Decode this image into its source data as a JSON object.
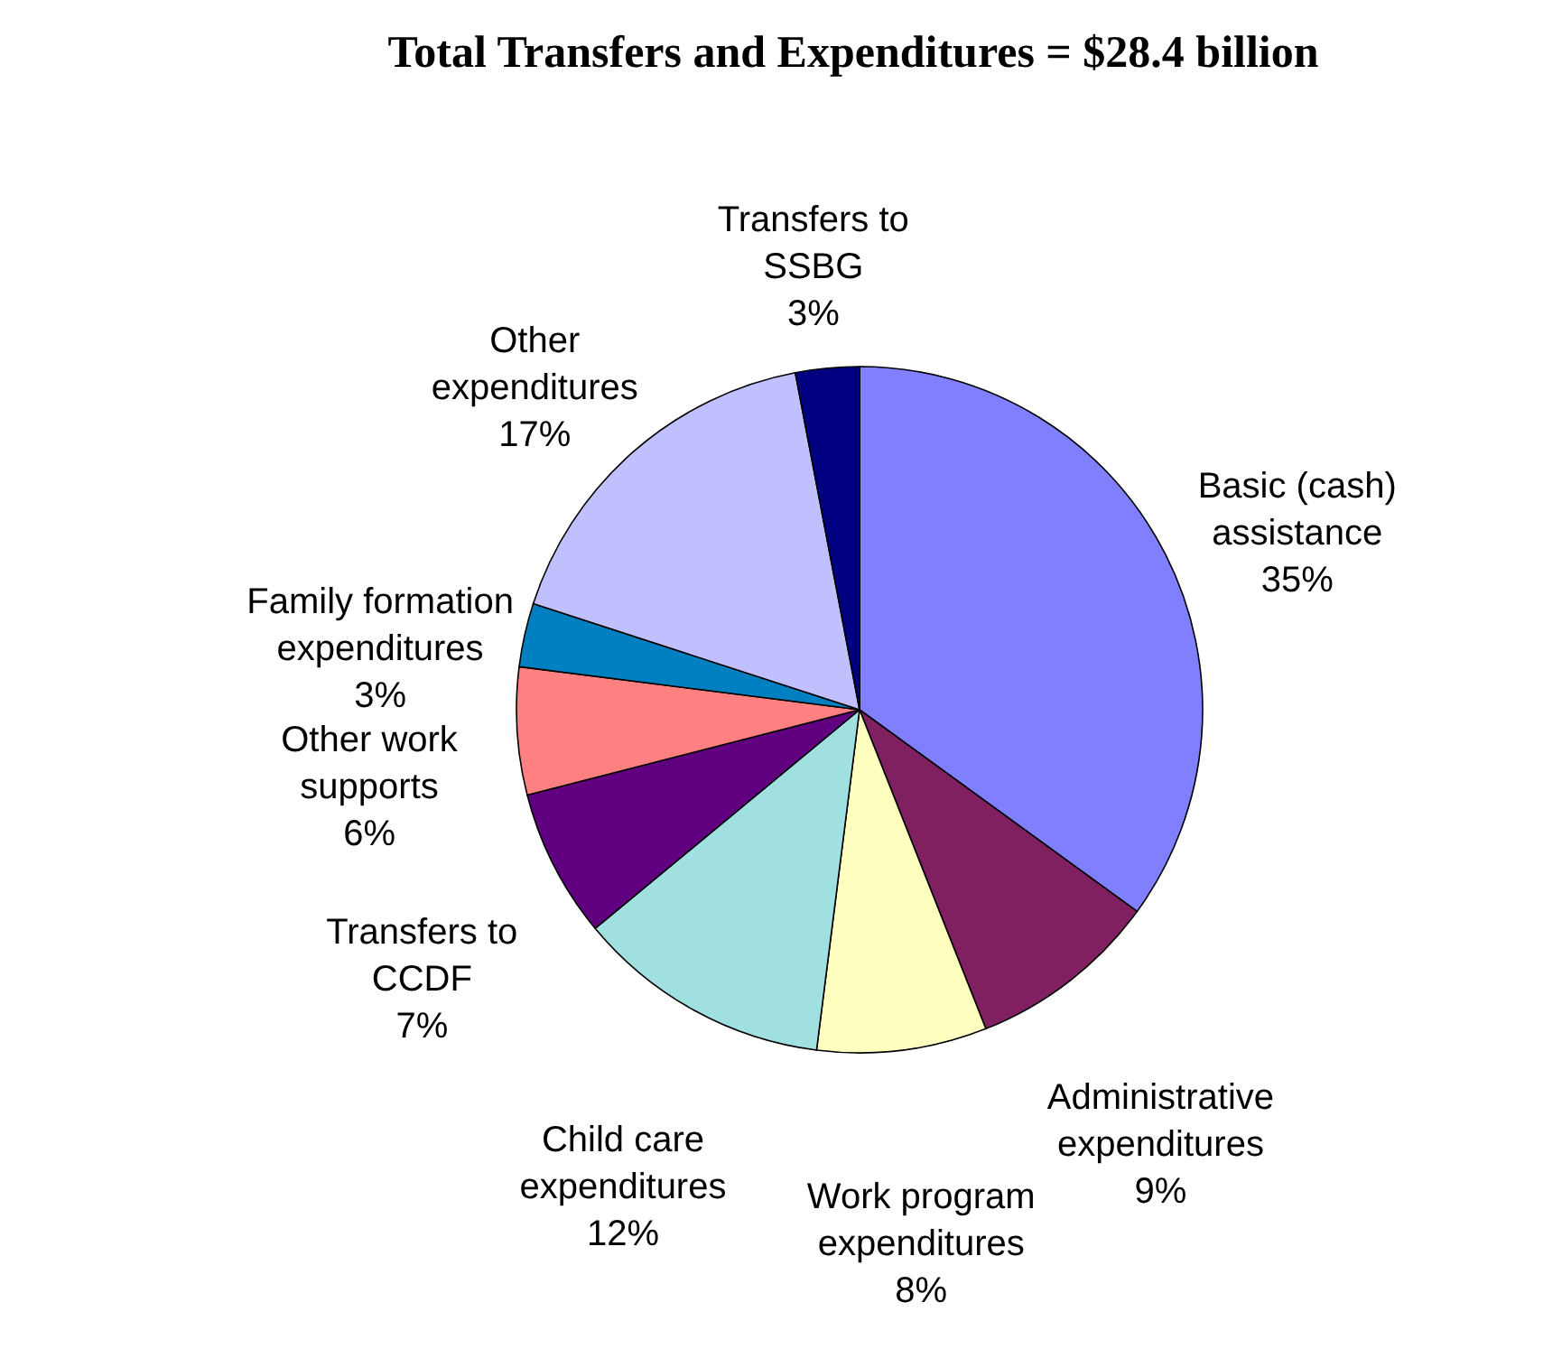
{
  "chart_data": {
    "type": "pie",
    "title": "Total Transfers and Expenditures = $28.4 billion",
    "categories": [
      "Basic (cash) assistance",
      "Administrative expenditures",
      "Work program expenditures",
      "Child care expenditures",
      "Transfers to CCDF",
      "Other work supports",
      "Family formation expenditures",
      "Other expenditures",
      "Transfers to SSBG"
    ],
    "values": [
      35,
      9,
      8,
      12,
      7,
      6,
      3,
      17,
      3
    ],
    "value_labels": [
      "35%",
      "9%",
      "8%",
      "12%",
      "7%",
      "6%",
      "3%",
      "17%",
      "3%"
    ],
    "colors": [
      "#8080ff",
      "#802060",
      "#ffffc0",
      "#a0e0e0",
      "#600080",
      "#ff8080",
      "#0080c0",
      "#c0c0ff",
      "#000080"
    ],
    "legend": false
  }
}
